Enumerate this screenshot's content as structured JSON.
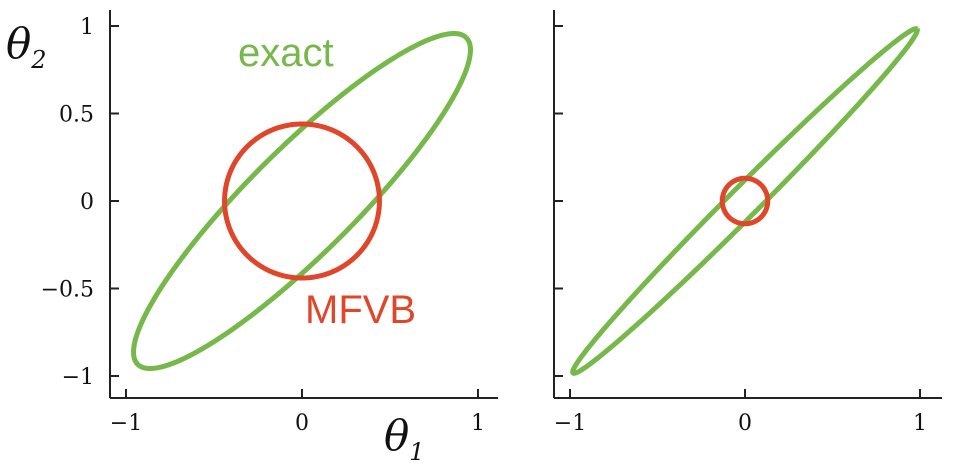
{
  "colors": {
    "exact": "#76b84a",
    "mfvb": "#e0462a",
    "axis": "#222222"
  },
  "chart_data": [
    {
      "type": "line",
      "xlim": [
        -1,
        1
      ],
      "ylim": [
        -1,
        1
      ],
      "x_ticks": [
        "−1",
        "0",
        "1"
      ],
      "y_ticks": [
        "1",
        "0.5",
        "0",
        "−0.5",
        "−1"
      ],
      "x_tick_values": [
        -1,
        0,
        1
      ],
      "y_tick_values": [
        1,
        0.5,
        0,
        -0.5,
        -1
      ],
      "xlabel": {
        "symbol": "θ",
        "sub": "1"
      },
      "ylabel": {
        "symbol": "θ",
        "sub": "2"
      },
      "series": [
        {
          "name": "exact",
          "shape": "ellipse",
          "center": [
            0,
            0
          ],
          "semi_major": 1.32,
          "semi_minor": 0.3,
          "angle_deg": 45
        },
        {
          "name": "MFVB",
          "shape": "circle",
          "center": [
            0,
            0
          ],
          "radius": 0.44
        }
      ]
    },
    {
      "type": "line",
      "xlim": [
        -1,
        1
      ],
      "ylim": [
        -1,
        1
      ],
      "x_ticks": [
        "−1",
        "0",
        "1"
      ],
      "x_tick_values": [
        -1,
        0,
        1
      ],
      "y_tick_values": [
        1,
        0.5,
        0,
        -0.5,
        -1
      ],
      "series": [
        {
          "name": "exact",
          "shape": "ellipse",
          "center": [
            0,
            0
          ],
          "semi_major": 1.39,
          "semi_minor": 0.085,
          "angle_deg": 45
        },
        {
          "name": "MFVB",
          "shape": "circle",
          "center": [
            0,
            0
          ],
          "radius": 0.13
        }
      ]
    }
  ]
}
